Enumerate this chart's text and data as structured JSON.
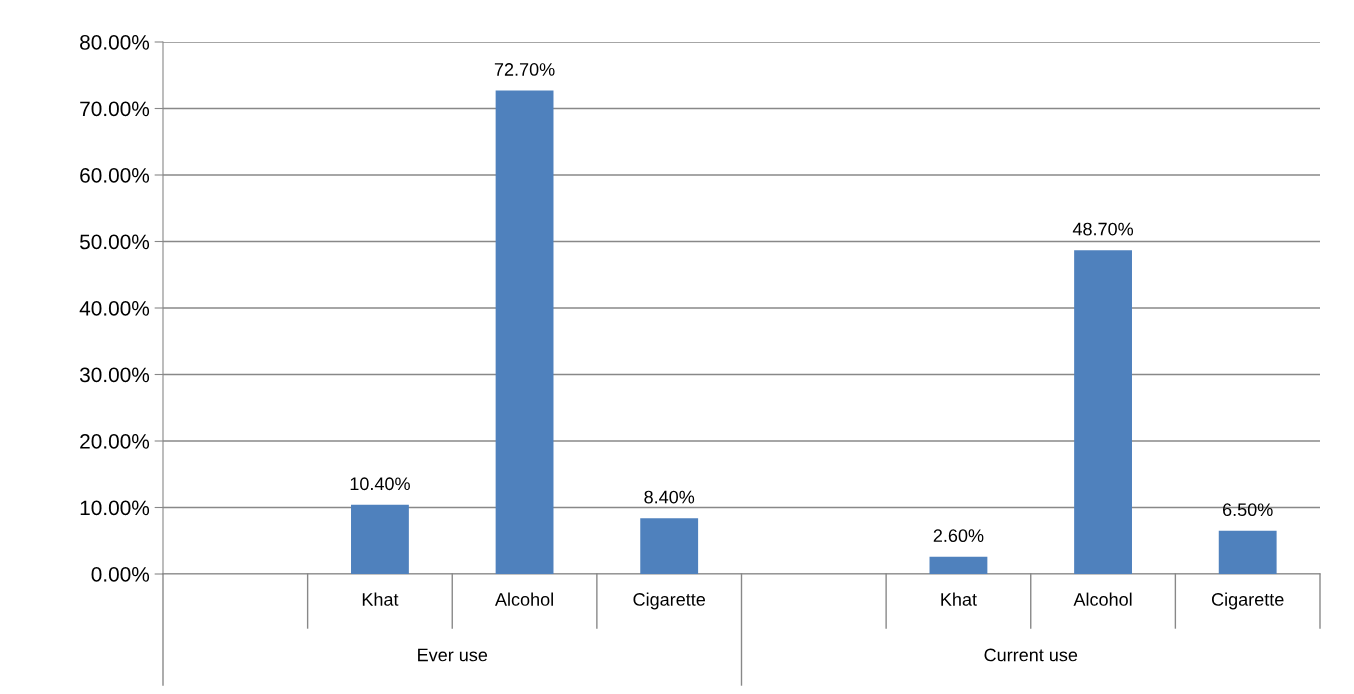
{
  "chart_data": {
    "type": "bar",
    "categories": [
      null,
      "Khat",
      "Alcohol",
      "Cigarette",
      null,
      "Khat",
      "Alcohol",
      "Cigarette"
    ],
    "values": [
      null,
      10.4,
      72.7,
      8.4,
      null,
      2.6,
      48.7,
      6.5
    ],
    "value_labels": [
      null,
      "10.40%",
      "72.70%",
      "8.40%",
      null,
      "2.60%",
      "48.70%",
      "6.50%"
    ],
    "color": "#4f81bd",
    "ylim": [
      0,
      80
    ],
    "yticks": [
      {
        "value": 0,
        "label": "0.00%"
      },
      {
        "value": 10,
        "label": "10.00%"
      },
      {
        "value": 20,
        "label": "20.00%"
      },
      {
        "value": 30,
        "label": "30.00%"
      },
      {
        "value": 40,
        "label": "40.00%"
      },
      {
        "value": 50,
        "label": "50.00%"
      },
      {
        "value": 60,
        "label": "60.00%"
      },
      {
        "value": 70,
        "label": "70.00%"
      },
      {
        "value": 80,
        "label": "80.00%"
      }
    ],
    "grid": "y",
    "annotations": [
      "Ever use",
      "Current use"
    ]
  }
}
